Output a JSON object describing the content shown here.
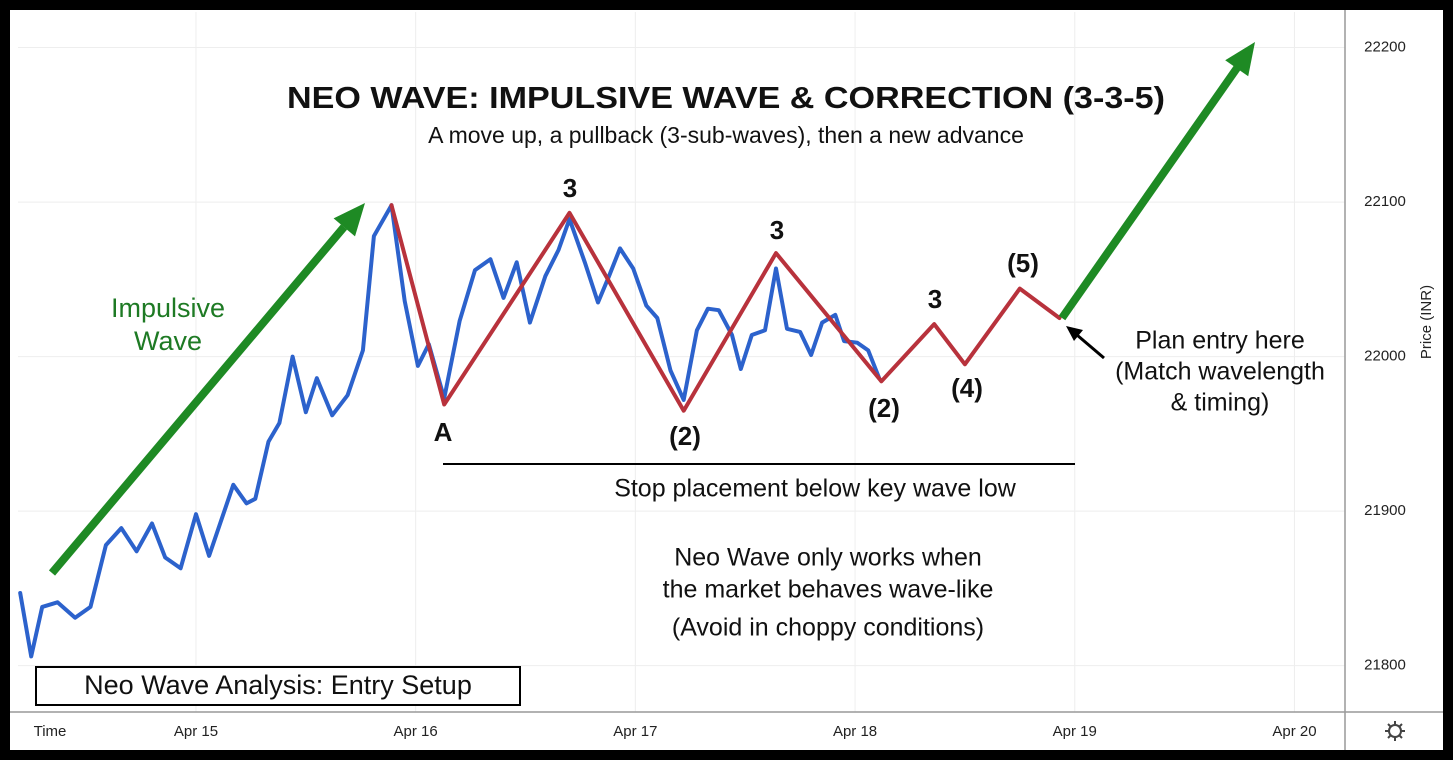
{
  "chart_data": {
    "type": "line",
    "title": "NEO WAVE: IMPULSIVE WAVE & CORRECTION (3-3-5)",
    "subtitle": "A move up, a pullback (3-sub-waves), then a new advance",
    "x_label": "Time",
    "y_label": "Price (INR)",
    "caption": "Neo Wave Analysis: Entry Setup",
    "xlim": [
      14.19,
      20.23
    ],
    "xticks": [
      {
        "value": 15,
        "label": "Apr 15"
      },
      {
        "value": 16,
        "label": "Apr 16"
      },
      {
        "value": 17,
        "label": "Apr 17"
      },
      {
        "value": 18,
        "label": "Apr 18"
      },
      {
        "value": 19,
        "label": "Apr 19"
      },
      {
        "value": 20,
        "label": "Apr 20"
      }
    ],
    "ylim": [
      21770,
      22223
    ],
    "yticks": [
      21800,
      21900,
      22000,
      22100,
      22200
    ],
    "grid": true,
    "series": [
      {
        "color": "#2c62cc",
        "x": [
          14.2,
          14.25,
          14.3,
          14.37,
          14.45,
          14.52,
          14.59,
          14.66,
          14.73,
          14.8,
          14.86,
          14.93,
          15.0,
          15.06,
          15.17,
          15.23,
          15.27,
          15.33,
          15.38,
          15.44,
          15.5,
          15.55,
          15.62,
          15.69,
          15.76,
          15.81,
          15.89,
          15.95,
          16.01,
          16.06,
          16.13,
          16.2,
          16.27,
          16.34,
          16.4,
          16.46,
          16.52,
          16.59,
          16.65,
          16.7,
          16.77,
          16.83,
          16.88,
          16.93,
          16.99,
          17.05,
          17.1,
          17.16,
          17.22,
          17.28,
          17.33,
          17.38,
          17.44,
          17.48,
          17.53,
          17.59,
          17.64,
          17.69,
          17.75,
          17.8,
          17.85,
          17.91,
          17.95,
          18.01,
          18.06,
          18.11
        ],
        "values": [
          21847,
          21806,
          21838,
          21841,
          21831,
          21838,
          21878,
          21889,
          21874,
          21892,
          21870,
          21863,
          21898,
          21871,
          21917,
          21905,
          21908,
          21945,
          21957,
          22000,
          21964,
          21986,
          21962,
          21975,
          22004,
          22078,
          22098,
          22036,
          21994,
          22008,
          21973,
          22023,
          22056,
          22063,
          22038,
          22061,
          22022,
          22052,
          22069,
          22089,
          22061,
          22035,
          22052,
          22070,
          22057,
          22033,
          22025,
          21991,
          21972,
          22017,
          22031,
          22030,
          22014,
          21992,
          22014,
          22017,
          22057,
          22018,
          22016,
          22001,
          22022,
          22027,
          22010,
          22009,
          22004,
          21986
        ]
      },
      {
        "color": "#b8323c",
        "x": [
          15.89,
          16.13,
          16.7,
          17.22,
          17.64,
          18.12,
          18.36,
          18.5,
          18.75,
          18.93
        ],
        "values": [
          22098,
          21969,
          22093,
          21965,
          22067,
          21984,
          22021,
          21995,
          22044,
          22025
        ]
      }
    ],
    "annotations": [
      "Impulsive",
      "Wave",
      "A",
      "3",
      "(2)",
      "3",
      "(2)",
      "3",
      "(4)",
      "(5)",
      "Plan entry here",
      "(Match wavelength",
      "& timing)",
      "Stop placement below key wave low",
      "Neo Wave only works when",
      "the market behaves wave-like",
      "(Avoid in choppy conditions)"
    ]
  }
}
